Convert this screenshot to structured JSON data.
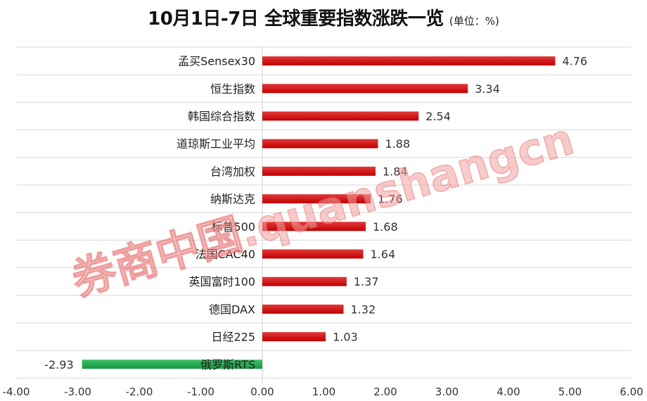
{
  "header": {
    "title": "10月1日-7日 全球重要指数涨跌一览",
    "subtitle": "(单位：%)"
  },
  "watermark": {
    "text": "券商中国.quanshangcn"
  },
  "colors": {
    "positive_bar": "#c00000",
    "negative_bar": "#1a9641",
    "grid": "#d9d9d9"
  },
  "chart_data": {
    "type": "bar",
    "orientation": "horizontal",
    "categories": [
      "孟买Sensex30",
      "恒生指数",
      "韩国综合指数",
      "道琼斯工业平均",
      "台湾加权",
      "纳斯达克",
      "标普500",
      "法国CAC40",
      "英国富时100",
      "德国DAX",
      "日经225",
      "俄罗斯RTS"
    ],
    "values": [
      4.76,
      3.34,
      2.54,
      1.88,
      1.84,
      1.76,
      1.68,
      1.64,
      1.37,
      1.32,
      1.03,
      -2.93
    ],
    "value_labels": [
      "4.76",
      "3.34",
      "2.54",
      "1.88",
      "1.84",
      "1.76",
      "1.68",
      "1.64",
      "1.37",
      "1.32",
      "1.03",
      "-2.93"
    ],
    "xlim": [
      -4,
      6
    ],
    "x_ticks": [
      -4,
      -3,
      -2,
      -1,
      0,
      1,
      2,
      3,
      4,
      5,
      6
    ],
    "x_tick_labels": [
      "-4.00",
      "-3.00",
      "-2.00",
      "-1.00",
      "0.00",
      "1.00",
      "2.00",
      "3.00",
      "4.00",
      "5.00",
      "6.00"
    ],
    "grid": true,
    "legend": "none"
  }
}
